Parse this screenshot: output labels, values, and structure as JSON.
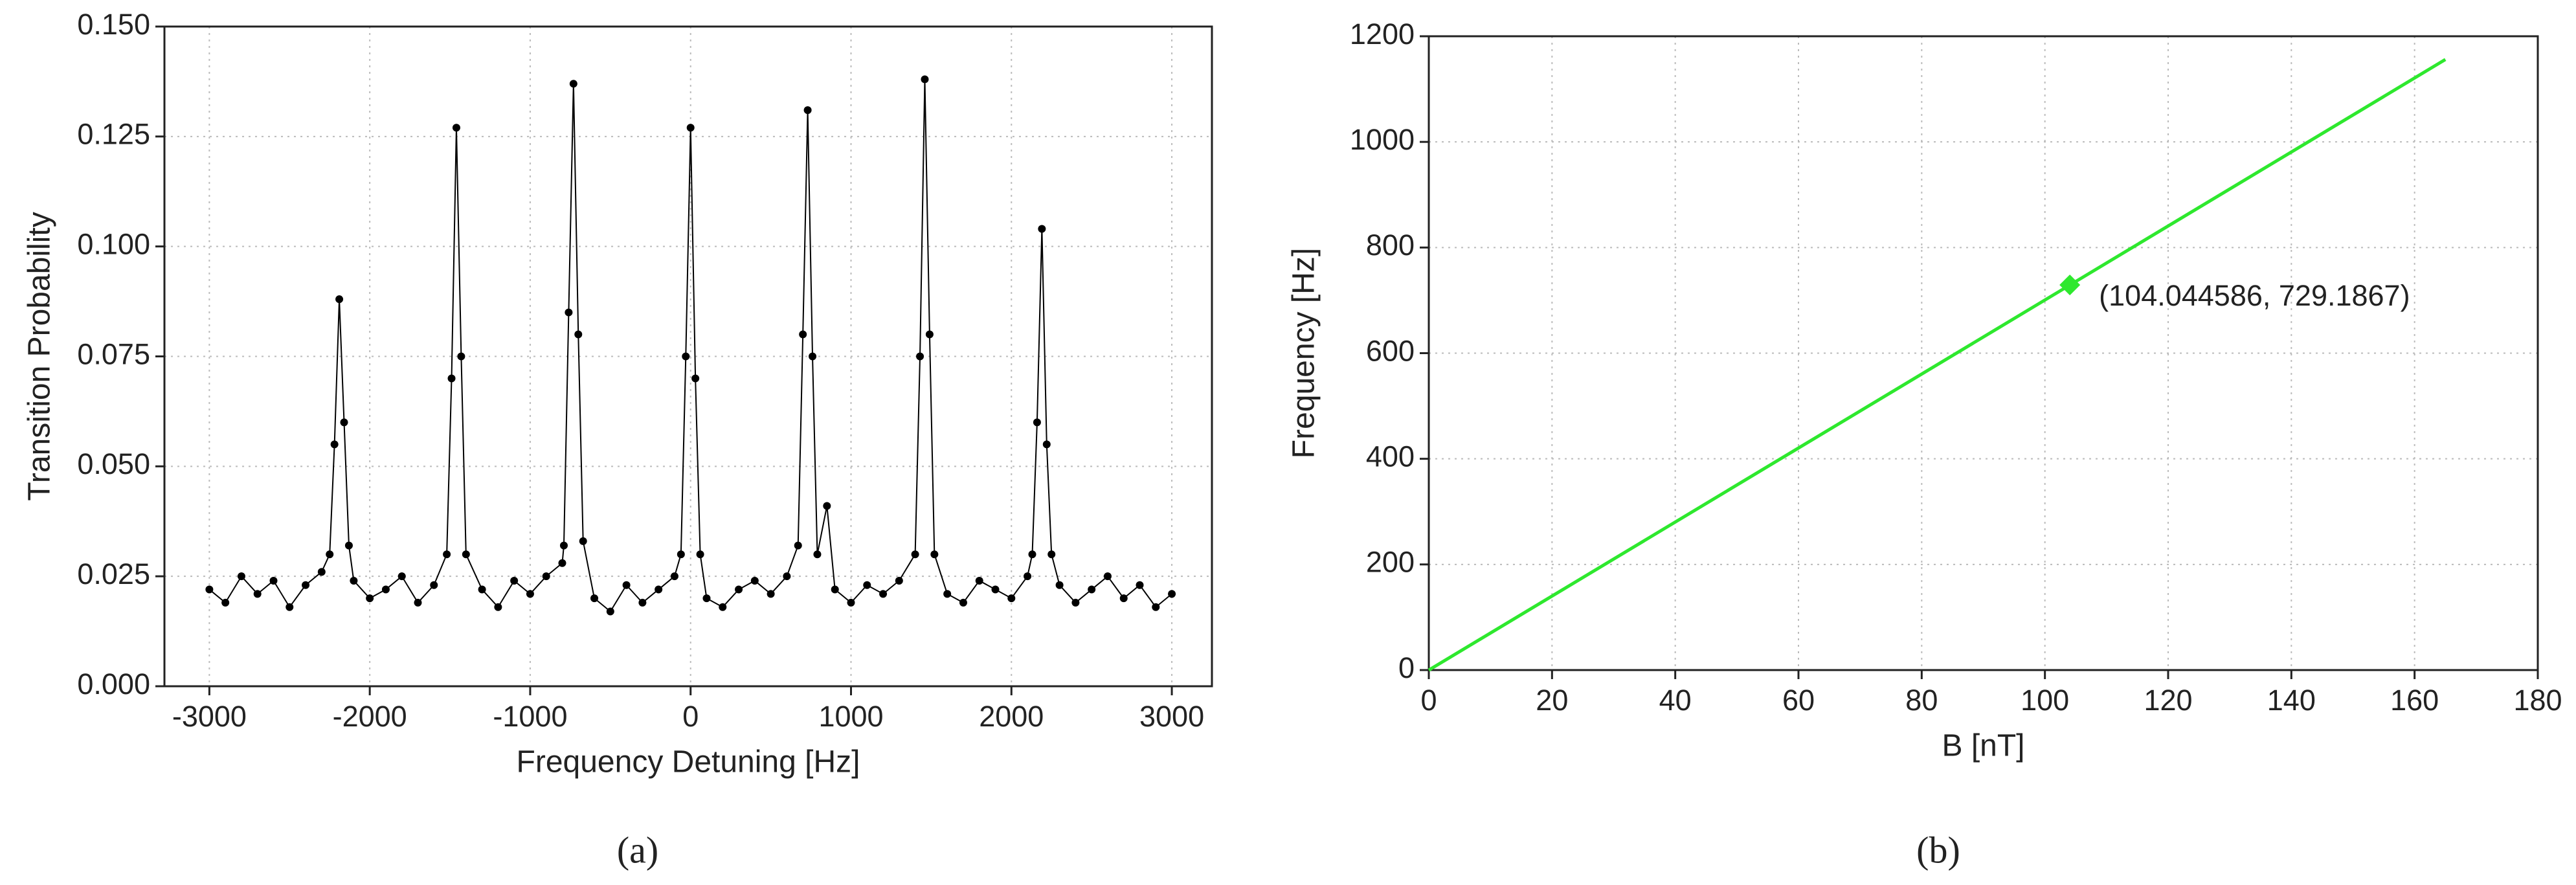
{
  "chart_data": [
    {
      "type": "scatter-line",
      "caption": "(a)",
      "xlabel": "Frequency Detuning [Hz]",
      "ylabel": "Transition Probability",
      "color": "#000000",
      "grid": true,
      "xlim": [
        -3280,
        3250
      ],
      "ylim": [
        0,
        0.15
      ],
      "xticks": [
        -3000,
        -2000,
        -1000,
        0,
        1000,
        2000,
        3000
      ],
      "yticks": [
        {
          "value": 0,
          "label": "0.000"
        },
        0.025,
        {
          "value": 0.05,
          "label": "0.050"
        },
        0.075,
        {
          "value": 0.1,
          "label": "0.100"
        },
        0.125,
        {
          "value": 0.15,
          "label": "0.150"
        }
      ],
      "x": [
        -3000,
        -2900,
        -2800,
        -2700,
        -2600,
        -2500,
        -2400,
        -2300,
        -2250,
        -2220,
        -2190,
        -2160,
        -2130,
        -2100,
        -2000,
        -1900,
        -1800,
        -1700,
        -1600,
        -1520,
        -1490,
        -1460,
        -1430,
        -1400,
        -1300,
        -1200,
        -1100,
        -1000,
        -900,
        -800,
        -790,
        -760,
        -730,
        -700,
        -670,
        -600,
        -500,
        -400,
        -300,
        -200,
        -100,
        -60,
        -30,
        0,
        30,
        60,
        100,
        200,
        300,
        400,
        500,
        600,
        670,
        700,
        730,
        760,
        790,
        850,
        900,
        1000,
        1100,
        1200,
        1300,
        1400,
        1430,
        1460,
        1490,
        1520,
        1600,
        1700,
        1800,
        1900,
        2000,
        2100,
        2130,
        2160,
        2190,
        2220,
        2250,
        2300,
        2400,
        2500,
        2600,
        2700,
        2800,
        2900,
        3000
      ],
      "values": [
        0.022,
        0.019,
        0.025,
        0.021,
        0.024,
        0.018,
        0.023,
        0.026,
        0.03,
        0.055,
        0.088,
        0.06,
        0.032,
        0.024,
        0.02,
        0.022,
        0.025,
        0.019,
        0.023,
        0.03,
        0.07,
        0.127,
        0.075,
        0.03,
        0.022,
        0.018,
        0.024,
        0.021,
        0.025,
        0.028,
        0.032,
        0.085,
        0.137,
        0.08,
        0.033,
        0.02,
        0.017,
        0.023,
        0.019,
        0.022,
        0.025,
        0.03,
        0.075,
        0.127,
        0.07,
        0.03,
        0.02,
        0.018,
        0.022,
        0.024,
        0.021,
        0.025,
        0.032,
        0.08,
        0.131,
        0.075,
        0.03,
        0.041,
        0.022,
        0.019,
        0.023,
        0.021,
        0.024,
        0.03,
        0.075,
        0.138,
        0.08,
        0.03,
        0.021,
        0.019,
        0.024,
        0.022,
        0.02,
        0.025,
        0.03,
        0.06,
        0.104,
        0.055,
        0.03,
        0.023,
        0.019,
        0.022,
        0.025,
        0.02,
        0.023,
        0.018,
        0.021
      ]
    },
    {
      "type": "line",
      "caption": "(b)",
      "xlabel": "B [nT]",
      "ylabel": "Frequency [Hz]",
      "color": "#2ee82e",
      "grid": true,
      "xlim": [
        0,
        180
      ],
      "ylim": [
        0,
        1200
      ],
      "xticks": [
        0,
        20,
        40,
        60,
        80,
        100,
        120,
        140,
        160,
        180
      ],
      "yticks": [
        0,
        200,
        400,
        600,
        800,
        1000,
        1200
      ],
      "x": [
        0,
        165
      ],
      "values": [
        0,
        1156
      ],
      "annotation": {
        "x": 104.044586,
        "y": 729.1867,
        "label": "(104.044586, 729.1867)"
      }
    }
  ]
}
